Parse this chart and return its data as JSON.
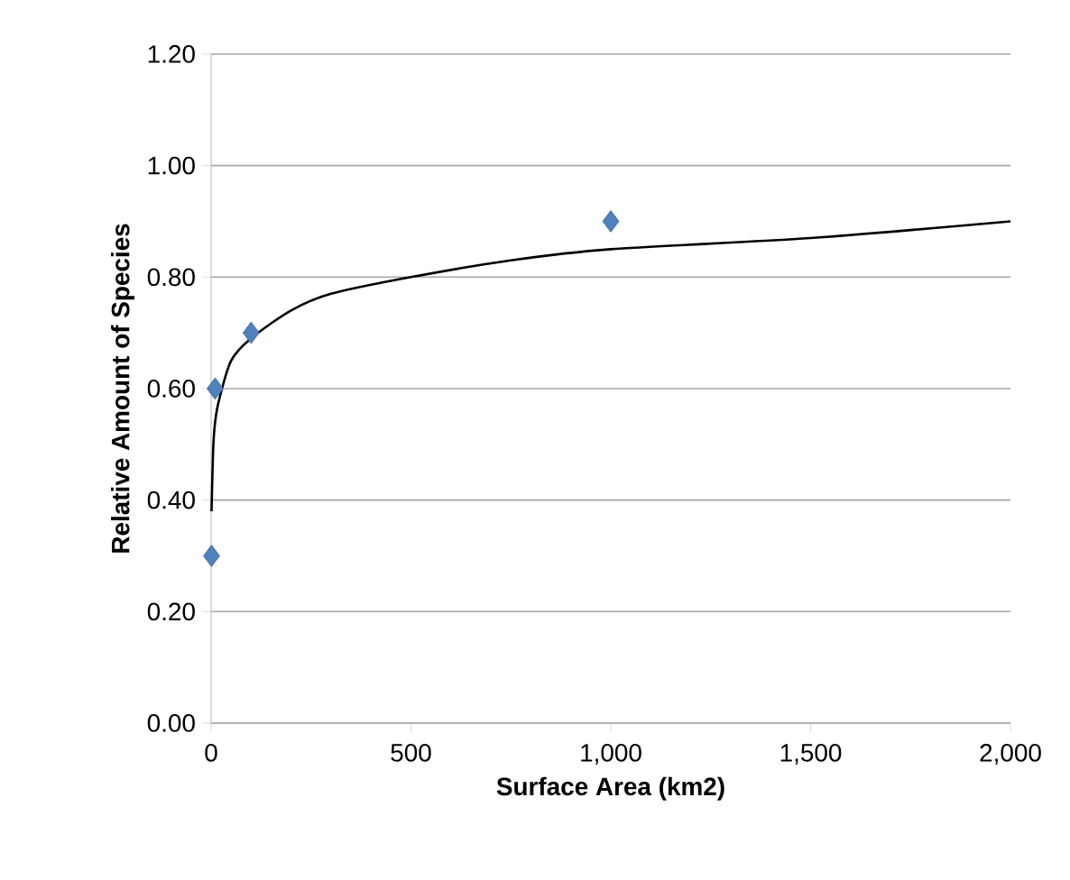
{
  "chart_data": {
    "type": "scatter",
    "xlabel": "Surface Area (km2)",
    "ylabel": "Relative Amount of Species",
    "xlim": [
      0,
      2000
    ],
    "ylim": [
      0,
      1.2
    ],
    "xticks": [
      0,
      500,
      {
        "value": 1000,
        "label": "1,000"
      },
      {
        "value": 1500,
        "label": "1,500"
      },
      {
        "value": 2000,
        "label": "2,000"
      }
    ],
    "yticks": [
      {
        "value": 0,
        "label": "0.00"
      },
      {
        "value": 0.2,
        "label": "0.20"
      },
      {
        "value": 0.4,
        "label": "0.40"
      },
      {
        "value": 0.6,
        "label": "0.60"
      },
      {
        "value": 0.8,
        "label": "0.80"
      },
      {
        "value": 1.0,
        "label": "1.00"
      },
      {
        "value": 1.2,
        "label": "1.20"
      }
    ],
    "grid": "y",
    "series": [
      {
        "type": "line",
        "color": "#000000",
        "marker": "none",
        "x": [
          1,
          5,
          10,
          20,
          50,
          100,
          200,
          300,
          500,
          750,
          1000,
          1500,
          2000
        ],
        "values": [
          0.38,
          0.49,
          0.54,
          0.58,
          0.65,
          0.69,
          0.74,
          0.77,
          0.8,
          0.83,
          0.85,
          0.87,
          0.9
        ]
      },
      {
        "color": "#4f81bd",
        "marker": "diamond",
        "x": [
          1,
          10,
          100,
          1000
        ],
        "values": [
          0.3,
          0.6,
          0.7,
          0.9
        ]
      }
    ]
  }
}
